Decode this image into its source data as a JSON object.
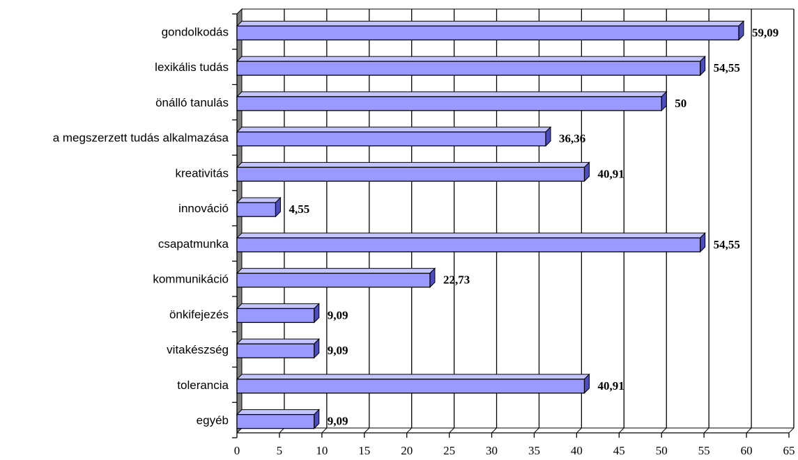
{
  "chart_data": {
    "type": "bar",
    "orientation": "horizontal",
    "title": "",
    "xlabel": "",
    "ylabel": "",
    "categories": [
      "gondolkodás",
      "lexikális tudás",
      "önálló tanulás",
      "a megszerzett tudás alkalmazása",
      "kreativitás",
      "innováció",
      "csapatmunka",
      "kommunikáció",
      "önkifejezés",
      "vitakészség",
      "tolerancia",
      "egyéb"
    ],
    "values": [
      59.09,
      54.55,
      50,
      36.36,
      40.91,
      4.55,
      54.55,
      22.73,
      9.09,
      9.09,
      40.91,
      9.09
    ],
    "data_labels": [
      "59,09",
      "54,55",
      "50",
      "36,36",
      "40,91",
      "4,55",
      "54,55",
      "22,73",
      "9,09",
      "9,09",
      "40,91",
      "9,09"
    ],
    "xlim": [
      0,
      65
    ],
    "xticks": [
      0,
      5,
      10,
      15,
      20,
      25,
      30,
      35,
      40,
      45,
      50,
      55,
      60,
      65
    ],
    "xtick_labels": [
      "0",
      "5",
      "10",
      "15",
      "20",
      "25",
      "30",
      "35",
      "40",
      "45",
      "50",
      "55",
      "60",
      "65"
    ],
    "grid": "vertical",
    "legend": "none",
    "style": "3d",
    "colors": {
      "bar_front": "#9999ff",
      "bar_side": "#4d4dbf",
      "bar_top": "#c4c4ff",
      "wall": "#808080",
      "grid": "#000000"
    }
  }
}
